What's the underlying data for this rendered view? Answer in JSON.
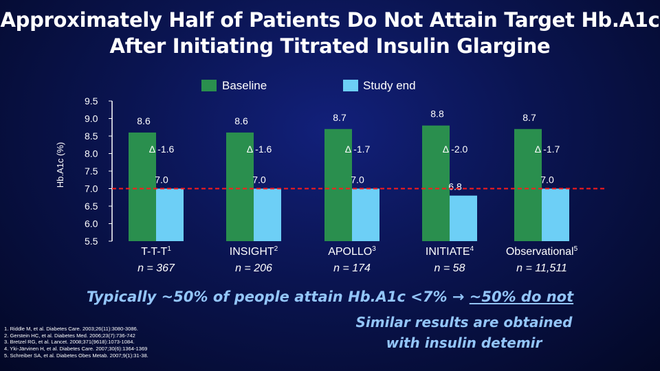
{
  "title": {
    "line1": "Approximately Half of Patients Do Not Attain Target Hb.A1c",
    "line2": "After Initiating Titrated Insulin Glargine"
  },
  "colors": {
    "baseline": "#2a8f4e",
    "study_end": "#6dcff6",
    "accent_text": "#93c5f8"
  },
  "headline": {
    "part1": "Typically ~50% of people attain Hb.A1c <7% → ",
    "part2": "~50% do not"
  },
  "similar": {
    "line1": "Similar results are obtained",
    "line2": "with insulin detemir"
  },
  "footnotes": [
    "1. Riddle M, et al. Diabetes Care. 2003;26(11):3080-3086.",
    "2. Gerstein HC, et al. Diabetes Med. 2006;23(7):736-742",
    "3. Bretzel RG, et al. Lancet. 2008;371(9618):1073-1084.",
    "4. Yki-Järvinen H, et al. Diabetes Care. 2007;30(6):1364-1369",
    "5. Schreiber SA, et al. Diabetes Obes Metab. 2007;9(1):31-38."
  ],
  "chart_data": {
    "type": "bar",
    "title": "",
    "xlabel": "",
    "ylabel": "Hb.A1c (%)",
    "ylim": [
      5.5,
      9.5
    ],
    "yticks": [
      "9.5",
      "9.0",
      "8.5",
      "8.0",
      "7.5",
      "7.0",
      "6.5",
      "6.0",
      "5.5"
    ],
    "target_line": 7.0,
    "grid": false,
    "legend_position": "top",
    "categories": [
      {
        "name": "T-T-T",
        "sup": "1",
        "n": "n = 367"
      },
      {
        "name": "INSIGHT",
        "sup": "2",
        "n": "n = 206"
      },
      {
        "name": "APOLLO",
        "sup": "3",
        "n": "n = 174"
      },
      {
        "name": "INITIATE",
        "sup": "4",
        "n": "n = 58"
      },
      {
        "name": "Observational",
        "sup": "5",
        "n": "n = 11,511"
      }
    ],
    "series": [
      {
        "name": "Baseline",
        "values": [
          8.6,
          8.6,
          8.7,
          8.8,
          8.7
        ],
        "labels": [
          "8.6",
          "8.6",
          "8.7",
          "8.8",
          "8.7"
        ]
      },
      {
        "name": "Study end",
        "values": [
          7.0,
          7.0,
          7.0,
          6.8,
          7.0
        ],
        "labels": [
          "7.0",
          "7.0",
          "7.0",
          "6.8",
          "7.0"
        ]
      }
    ],
    "deltas": [
      "Δ -1.6",
      "Δ -1.6",
      "Δ -1.7",
      "Δ -2.0",
      "Δ -1.7"
    ]
  }
}
